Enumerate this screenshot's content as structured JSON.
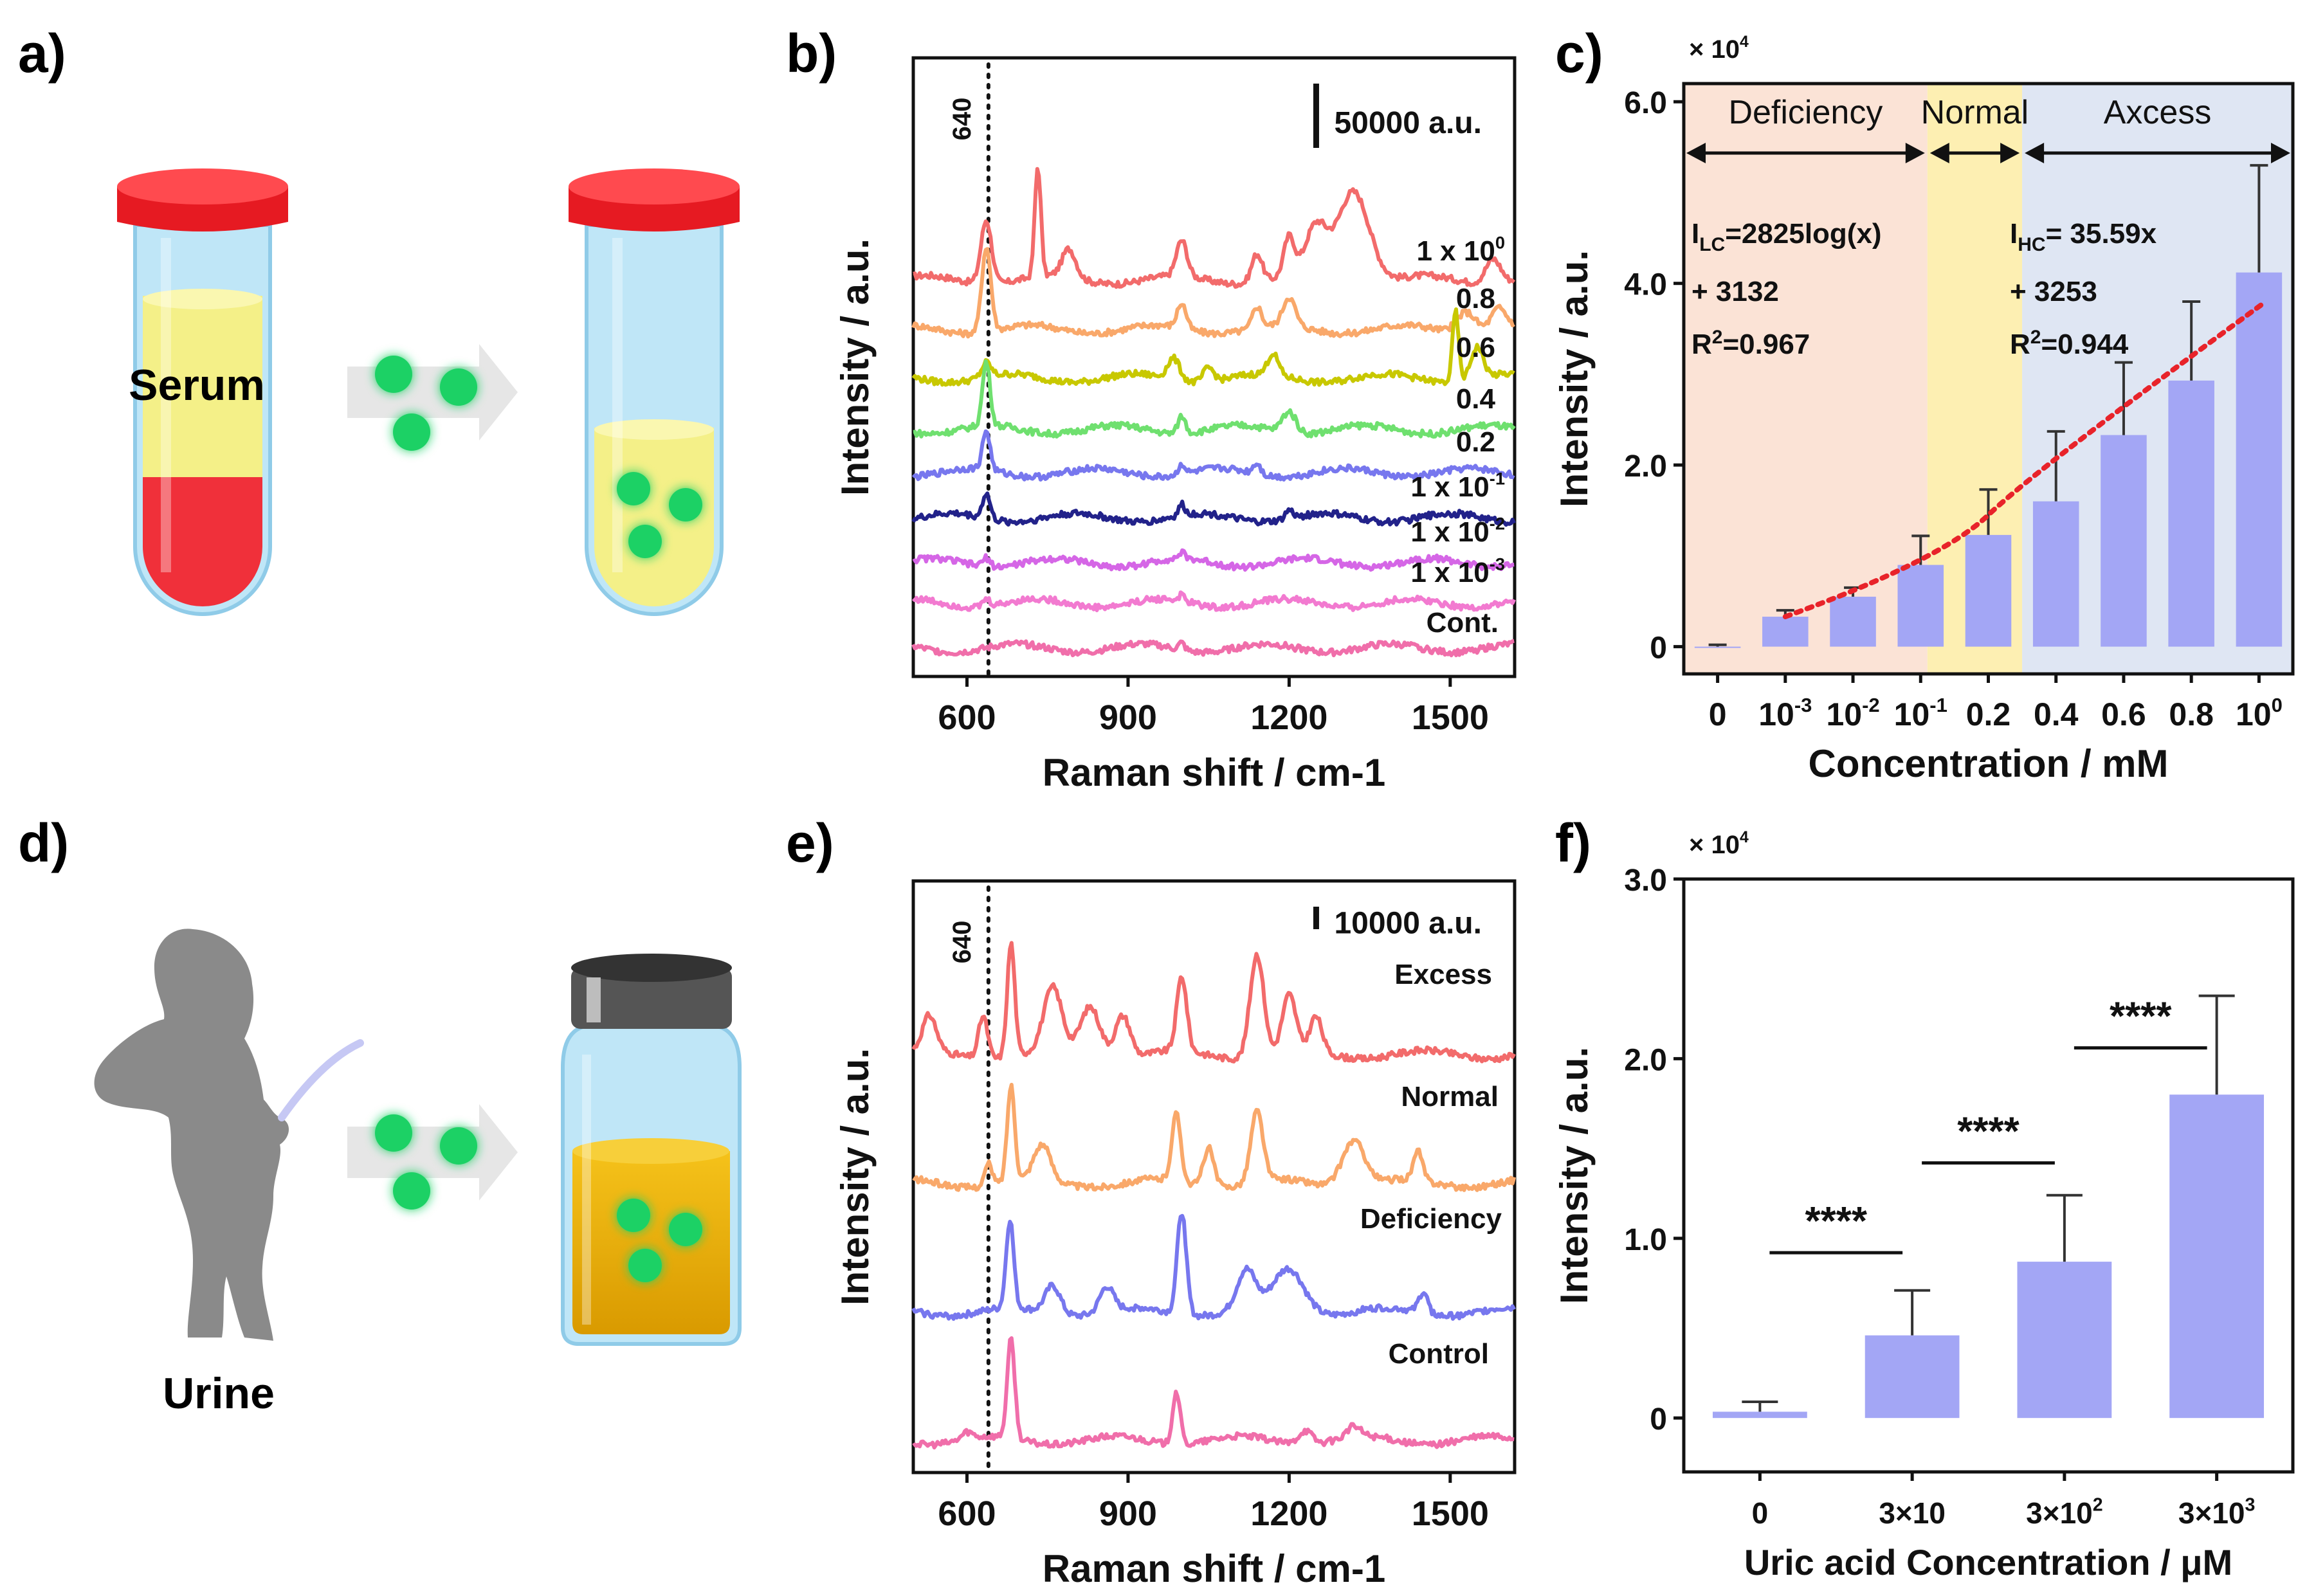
{
  "panels": {
    "a": {
      "letter": "a)",
      "sample_label": "Serum"
    },
    "b": {
      "letter": "b)"
    },
    "c": {
      "letter": "c)"
    },
    "d": {
      "letter": "d)",
      "sample_label": "Urine"
    },
    "e": {
      "letter": "e)"
    },
    "f": {
      "letter": "f)"
    }
  },
  "colors": {
    "bar": "#a3a6f5",
    "fit_line": "#e8232a",
    "deficiency_bg": "#fbe3d6",
    "normal_bg": "#fdefb2",
    "axcess_bg": "#dfe6f3",
    "bead": "#1fd165",
    "cap_red": "#ee1d23",
    "cap_gray": "#595959"
  },
  "chart_data": [
    {
      "panel": "b",
      "type": "line",
      "ylabel": "Intensity / a.u.",
      "xlabel": "Raman shift / cm-1",
      "xlim": [
        500,
        1620
      ],
      "xticks": [
        "600",
        "900",
        "1200",
        "1500"
      ],
      "yticks": false,
      "marker": {
        "x": 640,
        "label": "640"
      },
      "scale_bar": "50000 a.u.",
      "series": [
        {
          "name": "1 x 10",
          "exp": "0",
          "color": "#f26b6b",
          "peaks": [
            [
              636,
              0.9,
              14
            ],
            [
              732,
              1.55,
              8
            ],
            [
              790,
              0.4,
              18
            ],
            [
              1000,
              0.5,
              14
            ],
            [
              1140,
              0.4,
              14
            ],
            [
              1200,
              0.55,
              14
            ],
            [
              1250,
              0.7,
              28
            ],
            [
              1320,
              1.3,
              42
            ],
            [
              1580,
              0.35,
              20
            ]
          ]
        },
        {
          "name": "0.8",
          "exp": "",
          "color": "#f9a86a",
          "peaks": [
            [
              636,
              1.2,
              12
            ],
            [
              1000,
              0.35,
              12
            ],
            [
              1140,
              0.3,
              12
            ],
            [
              1200,
              0.4,
              16
            ],
            [
              1530,
              0.3,
              25
            ],
            [
              1590,
              0.3,
              20
            ]
          ]
        },
        {
          "name": "0.6",
          "exp": "",
          "color": "#c8c800",
          "peaks": [
            [
              636,
              0.2,
              12
            ],
            [
              985,
              0.3,
              16
            ],
            [
              1050,
              0.2,
              14
            ],
            [
              1170,
              0.3,
              14
            ],
            [
              1510,
              1.0,
              8
            ],
            [
              1550,
              0.45,
              16
            ]
          ]
        },
        {
          "name": "0.4",
          "exp": "",
          "color": "#6fe06f",
          "peaks": [
            [
              636,
              0.9,
              10
            ],
            [
              1000,
              0.25,
              10
            ],
            [
              1200,
              0.3,
              18
            ]
          ]
        },
        {
          "name": "0.2",
          "exp": "",
          "color": "#7777ee",
          "peaks": [
            [
              636,
              0.55,
              10
            ],
            [
              1000,
              0.15,
              8
            ],
            [
              1140,
              0.15,
              10
            ]
          ]
        },
        {
          "name": "1 x 10",
          "exp": "-1",
          "color": "#22228a",
          "peaks": [
            [
              636,
              0.35,
              10
            ],
            [
              1000,
              0.15,
              8
            ],
            [
              1200,
              0.12,
              10
            ]
          ]
        },
        {
          "name": "1 x 10",
          "exp": "-2",
          "color": "#d566e6",
          "peaks": [
            [
              636,
              0.12,
              10
            ],
            [
              1000,
              0.08,
              8
            ]
          ]
        },
        {
          "name": "1 x 10",
          "exp": "-3",
          "color": "#f27ad0",
          "peaks": [
            [
              636,
              0.1,
              10
            ],
            [
              1000,
              0.08,
              8
            ]
          ]
        },
        {
          "name": "Cont.",
          "exp": "",
          "color": "#f06eaa",
          "peaks": [
            [
              1000,
              0.1,
              8
            ]
          ]
        }
      ]
    },
    {
      "panel": "c",
      "type": "bar",
      "ylabel": "Intensity / a.u.",
      "xlabel": "Concentration / mM",
      "y_multiplier": "× 10",
      "y_multiplier_exp": "4",
      "ylim": [
        -0.3,
        6.2
      ],
      "yticks": [
        "0",
        "2.0",
        "4.0",
        "6.0"
      ],
      "categories": [
        {
          "base": "0",
          "exp": ""
        },
        {
          "base": "10",
          "exp": "-3"
        },
        {
          "base": "10",
          "exp": "-2"
        },
        {
          "base": "10",
          "exp": "-1"
        },
        {
          "base": "0.2",
          "exp": ""
        },
        {
          "base": "0.4",
          "exp": ""
        },
        {
          "base": "0.6",
          "exp": ""
        },
        {
          "base": "0.8",
          "exp": ""
        },
        {
          "base": "10",
          "exp": "0"
        }
      ],
      "values": [
        0.0,
        0.33,
        0.55,
        0.9,
        1.23,
        1.6,
        2.33,
        2.93,
        4.12
      ],
      "errors": [
        0.02,
        0.07,
        0.1,
        0.32,
        0.5,
        0.77,
        0.8,
        0.87,
        1.18
      ],
      "fit_line": {
        "start": [
          1,
          0.33
        ],
        "end": [
          8.1,
          3.8
        ]
      },
      "regions": [
        {
          "label": "Deficiency",
          "color": "#fbe3d6",
          "from": -0.5,
          "to": 3.1
        },
        {
          "label": "Normal",
          "color": "#fdefb2",
          "from": 3.1,
          "to": 4.5
        },
        {
          "label": "Axcess",
          "color": "#dfe6f3",
          "from": 4.5,
          "to": 8.5
        }
      ],
      "equation_low": {
        "sub": "LC",
        "rhs": "=2825log(x)",
        "line2": " + 3132",
        "r2": "=0.967"
      },
      "equation_high": {
        "sub": "HC",
        "rhs": "= 35.59x",
        "line2": " + 3253",
        "r2": "=0.944"
      }
    },
    {
      "panel": "e",
      "type": "line",
      "ylabel": "Intensity / a.u.",
      "xlabel": "Raman shift / cm-1",
      "xlim": [
        500,
        1620
      ],
      "xticks": [
        "600",
        "900",
        "1200",
        "1500"
      ],
      "yticks": false,
      "marker": {
        "x": 640,
        "label": "640"
      },
      "scale_bar": "10000 a.u.",
      "series": [
        {
          "name": "Excess",
          "exp": "",
          "color": "#f26b6b",
          "peaks": [
            [
              530,
              0.5,
              18
            ],
            [
              630,
              0.6,
              12
            ],
            [
              682,
              1.6,
              10
            ],
            [
              760,
              0.9,
              24
            ],
            [
              830,
              0.7,
              26
            ],
            [
              890,
              0.6,
              20
            ],
            [
              1000,
              1.05,
              13
            ],
            [
              1140,
              1.45,
              18
            ],
            [
              1200,
              0.8,
              18
            ],
            [
              1250,
              0.5,
              16
            ]
          ]
        },
        {
          "name": "Normal",
          "exp": "",
          "color": "#f9a86a",
          "peaks": [
            [
              640,
              0.3,
              10
            ],
            [
              682,
              1.35,
              10
            ],
            [
              740,
              0.5,
              22
            ],
            [
              990,
              0.95,
              12
            ],
            [
              1050,
              0.55,
              14
            ],
            [
              1140,
              1.0,
              16
            ],
            [
              1320,
              0.65,
              30
            ],
            [
              1440,
              0.4,
              12
            ]
          ]
        },
        {
          "name": "Deficiency",
          "exp": "",
          "color": "#7777ee",
          "peaks": [
            [
              680,
              1.25,
              10
            ],
            [
              760,
              0.4,
              20
            ],
            [
              860,
              0.35,
              18
            ],
            [
              1000,
              1.45,
              12
            ],
            [
              1120,
              0.55,
              24
            ],
            [
              1200,
              0.6,
              40
            ],
            [
              1450,
              0.3,
              12
            ]
          ]
        },
        {
          "name": "Control",
          "exp": "",
          "color": "#f06eaa",
          "peaks": [
            [
              600,
              0.1,
              14
            ],
            [
              682,
              1.4,
              10
            ],
            [
              990,
              0.75,
              10
            ],
            [
              1230,
              0.2,
              18
            ],
            [
              1320,
              0.15,
              18
            ]
          ]
        }
      ]
    },
    {
      "panel": "f",
      "type": "bar",
      "ylabel": "Intensity / a.u.",
      "xlabel": "Uric acid Concentration / μM",
      "y_multiplier": "× 10",
      "y_multiplier_exp": "4",
      "ylim": [
        -0.3,
        3.0
      ],
      "yticks": [
        "0",
        "1.0",
        "2.0",
        "3.0"
      ],
      "categories": [
        {
          "base": "0",
          "exp": ""
        },
        {
          "base": "3×10",
          "exp": ""
        },
        {
          "base": "3×10",
          "exp": "2"
        },
        {
          "base": "3×10",
          "exp": "3"
        }
      ],
      "values": [
        0.035,
        0.46,
        0.87,
        1.8
      ],
      "errors": [
        0.055,
        0.25,
        0.37,
        0.55
      ],
      "significance": [
        {
          "from": 0,
          "to": 1,
          "y": 0.92,
          "label": "****"
        },
        {
          "from": 1,
          "to": 2,
          "y": 1.42,
          "label": "****"
        },
        {
          "from": 2,
          "to": 3,
          "y": 2.06,
          "label": "****"
        }
      ]
    }
  ]
}
